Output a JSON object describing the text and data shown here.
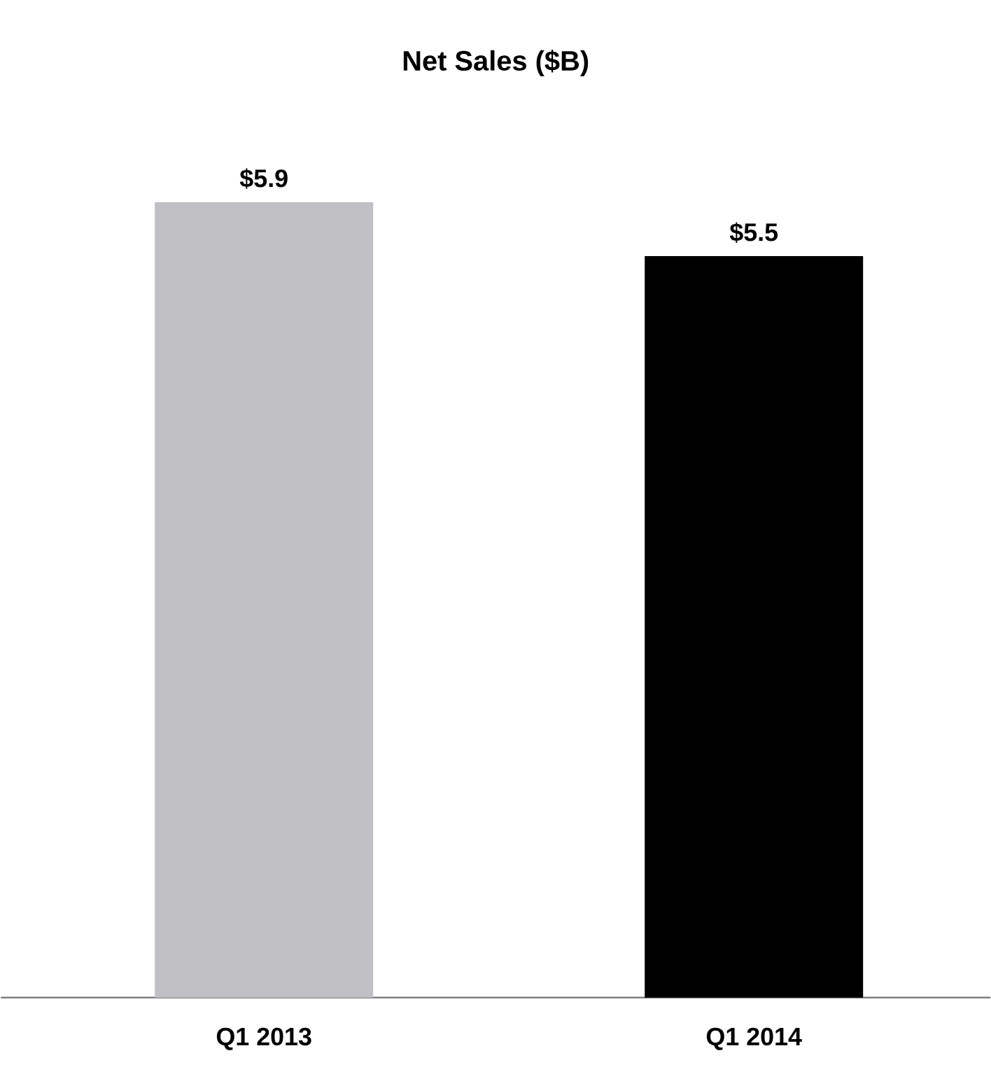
{
  "chart_data": {
    "type": "bar",
    "title": "Net Sales ($B)",
    "categories": [
      "Q1 2013",
      "Q1 2014"
    ],
    "values": [
      5.9,
      5.5
    ],
    "colors": [
      "#c0bfc4",
      "#000000"
    ],
    "value_labels": [
      "$5.9",
      "$5.5"
    ]
  }
}
